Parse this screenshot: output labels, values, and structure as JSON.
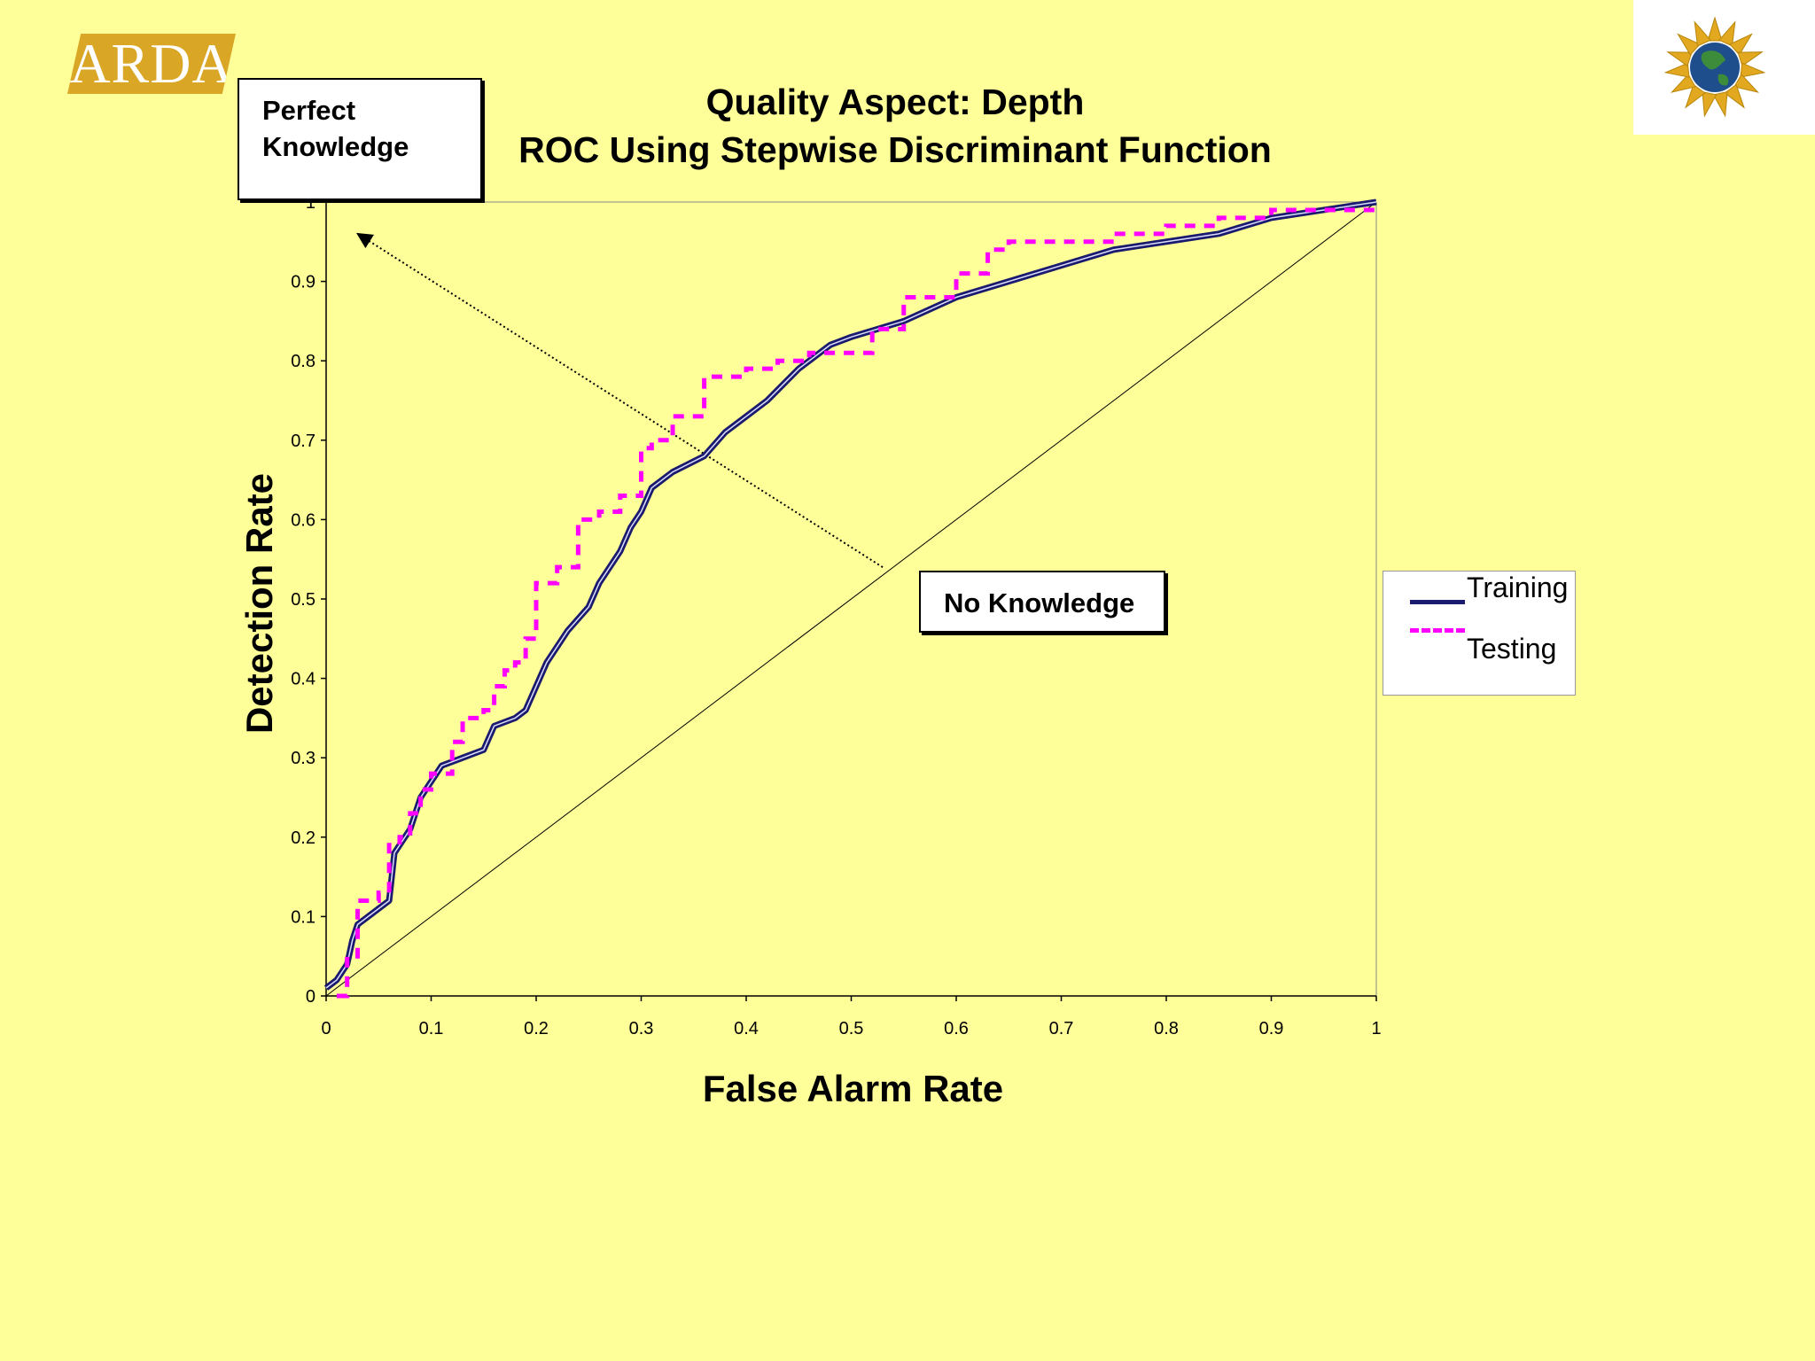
{
  "header": {
    "logo_text": "ARDA",
    "title_line1": "Quality Aspect: Depth",
    "title_line2": "ROC Using Stepwise Discriminant Function"
  },
  "callouts": {
    "perfect_line1": "Perfect",
    "perfect_line2": "Knowledge",
    "no_knowledge": "No Knowledge"
  },
  "legend": {
    "training": "Training",
    "testing": "Testing"
  },
  "colors": {
    "background": "#FFFF99",
    "training": "#1A1A6E",
    "testing": "#FF00FF",
    "logo": "#D9A626"
  },
  "icons": {
    "logo": "arda-logo",
    "emblem": "globe-star-emblem-icon"
  },
  "chart_data": {
    "type": "line",
    "title": "Quality Aspect: Depth ROC Using Stepwise Discriminant Function",
    "xlabel": "False Alarm Rate",
    "ylabel": "Detection Rate",
    "xlim": [
      0,
      1
    ],
    "ylim": [
      0,
      1
    ],
    "x_ticks": [
      "0",
      "0.1",
      "0.2",
      "0.3",
      "0.4",
      "0.5",
      "0.6",
      "0.7",
      "0.8",
      "0.9",
      "1"
    ],
    "y_ticks": [
      "0",
      "0.1",
      "0.2",
      "0.3",
      "0.4",
      "0.5",
      "0.6",
      "0.7",
      "0.8",
      "0.9",
      "1"
    ],
    "grid": false,
    "legend_position": "right",
    "series": [
      {
        "name": "Training",
        "style": "solid",
        "points": [
          [
            0,
            0.01
          ],
          [
            0.01,
            0.02
          ],
          [
            0.02,
            0.04
          ],
          [
            0.025,
            0.07
          ],
          [
            0.03,
            0.09
          ],
          [
            0.04,
            0.1
          ],
          [
            0.06,
            0.12
          ],
          [
            0.065,
            0.18
          ],
          [
            0.08,
            0.21
          ],
          [
            0.09,
            0.25
          ],
          [
            0.1,
            0.27
          ],
          [
            0.11,
            0.29
          ],
          [
            0.13,
            0.3
          ],
          [
            0.15,
            0.31
          ],
          [
            0.16,
            0.34
          ],
          [
            0.18,
            0.35
          ],
          [
            0.19,
            0.36
          ],
          [
            0.2,
            0.39
          ],
          [
            0.21,
            0.42
          ],
          [
            0.23,
            0.46
          ],
          [
            0.25,
            0.49
          ],
          [
            0.26,
            0.52
          ],
          [
            0.28,
            0.56
          ],
          [
            0.29,
            0.59
          ],
          [
            0.3,
            0.61
          ],
          [
            0.31,
            0.64
          ],
          [
            0.33,
            0.66
          ],
          [
            0.36,
            0.68
          ],
          [
            0.38,
            0.71
          ],
          [
            0.4,
            0.73
          ],
          [
            0.42,
            0.75
          ],
          [
            0.45,
            0.79
          ],
          [
            0.48,
            0.82
          ],
          [
            0.5,
            0.83
          ],
          [
            0.55,
            0.85
          ],
          [
            0.6,
            0.88
          ],
          [
            0.65,
            0.9
          ],
          [
            0.7,
            0.92
          ],
          [
            0.75,
            0.94
          ],
          [
            0.8,
            0.95
          ],
          [
            0.85,
            0.96
          ],
          [
            0.9,
            0.98
          ],
          [
            0.95,
            0.99
          ],
          [
            1.0,
            1.0
          ]
        ]
      },
      {
        "name": "Testing",
        "style": "dashed",
        "points": [
          [
            0.01,
            0
          ],
          [
            0.02,
            0.05
          ],
          [
            0.03,
            0.12
          ],
          [
            0.05,
            0.13
          ],
          [
            0.06,
            0.19
          ],
          [
            0.07,
            0.2
          ],
          [
            0.08,
            0.23
          ],
          [
            0.09,
            0.26
          ],
          [
            0.1,
            0.28
          ],
          [
            0.12,
            0.32
          ],
          [
            0.13,
            0.35
          ],
          [
            0.15,
            0.36
          ],
          [
            0.16,
            0.39
          ],
          [
            0.17,
            0.41
          ],
          [
            0.18,
            0.42
          ],
          [
            0.19,
            0.45
          ],
          [
            0.2,
            0.52
          ],
          [
            0.22,
            0.54
          ],
          [
            0.24,
            0.6
          ],
          [
            0.26,
            0.61
          ],
          [
            0.28,
            0.63
          ],
          [
            0.3,
            0.69
          ],
          [
            0.31,
            0.7
          ],
          [
            0.33,
            0.73
          ],
          [
            0.36,
            0.78
          ],
          [
            0.4,
            0.79
          ],
          [
            0.43,
            0.8
          ],
          [
            0.46,
            0.81
          ],
          [
            0.52,
            0.84
          ],
          [
            0.55,
            0.88
          ],
          [
            0.6,
            0.91
          ],
          [
            0.63,
            0.94
          ],
          [
            0.65,
            0.95
          ],
          [
            0.7,
            0.95
          ],
          [
            0.75,
            0.96
          ],
          [
            0.8,
            0.97
          ],
          [
            0.85,
            0.98
          ],
          [
            0.9,
            0.99
          ],
          [
            1.0,
            0.99
          ]
        ]
      }
    ],
    "reference_line": [
      [
        0,
        0
      ],
      [
        1,
        1
      ]
    ],
    "annotations": [
      {
        "text": "Perfect Knowledge",
        "arrow_to": [
          0.03,
          0.96
        ]
      },
      {
        "text": "No Knowledge",
        "arrow_from": [
          0.53,
          0.54
        ]
      }
    ]
  }
}
